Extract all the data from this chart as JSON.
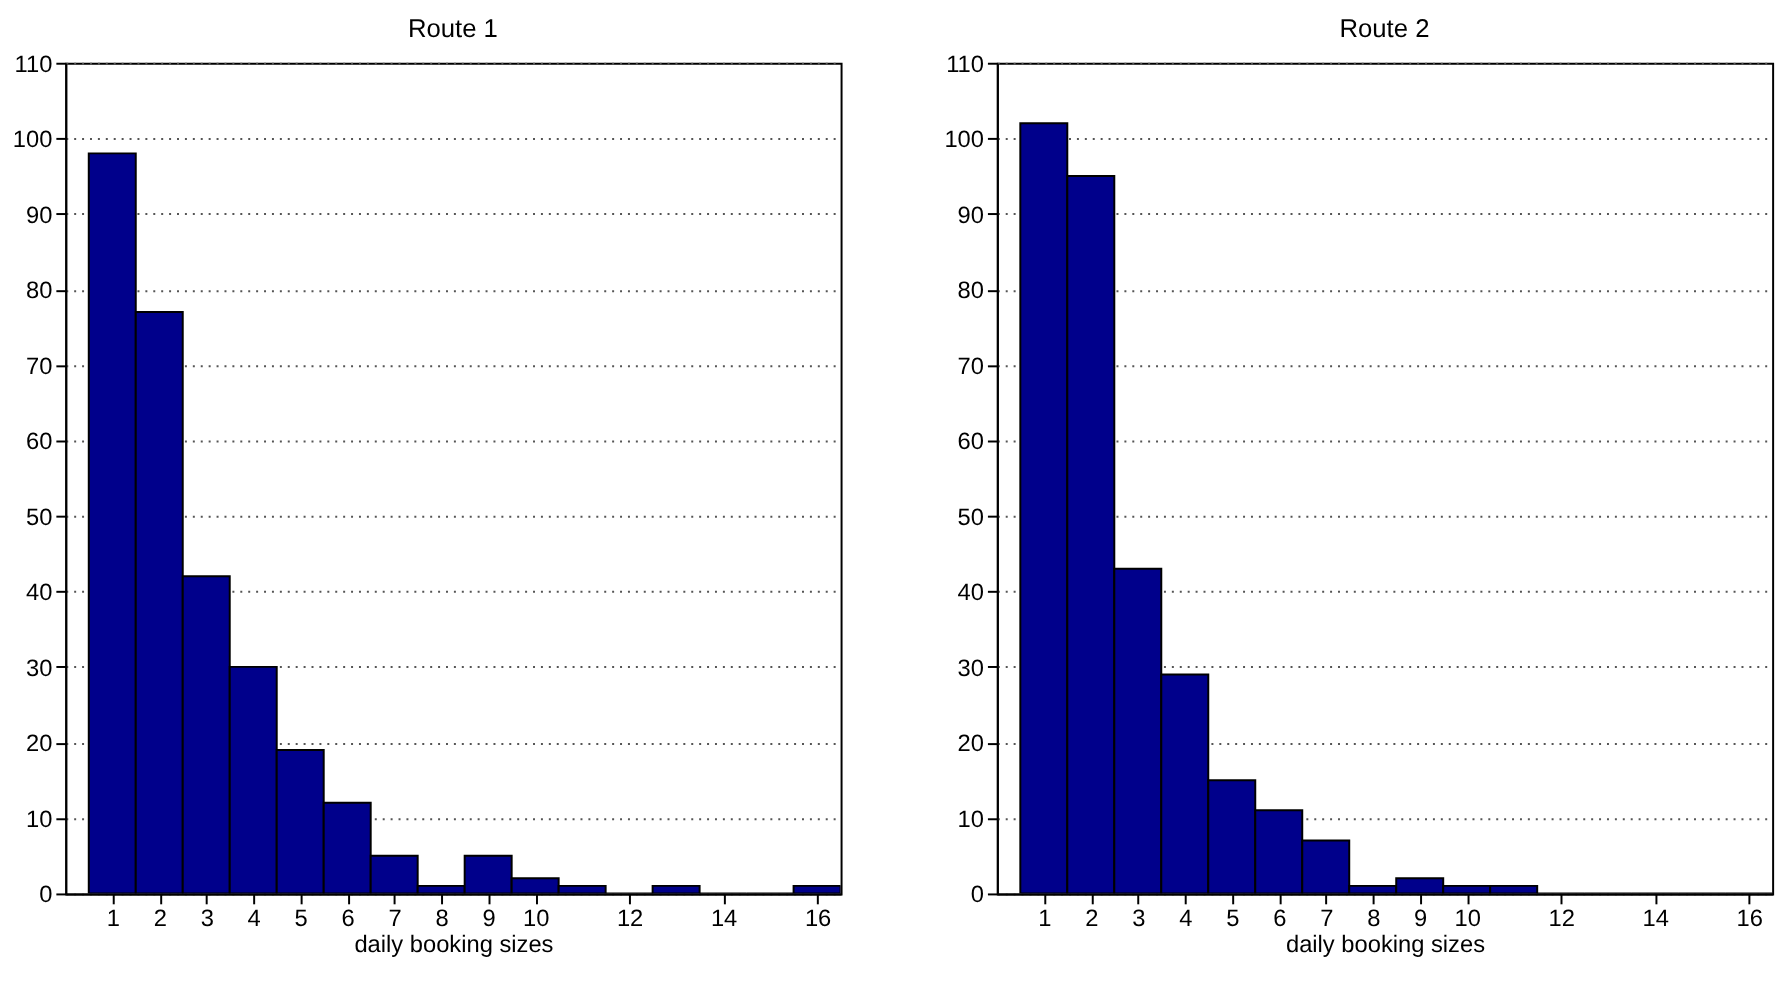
{
  "chart_data": [
    {
      "type": "histogram",
      "title": "Route 1",
      "xlabel": "daily booking sizes",
      "bins": [
        0.5,
        1.5,
        2.5,
        3.5,
        4.5,
        5.5,
        6.5,
        7.5,
        8.5,
        9.5,
        10.5,
        11.5,
        12.5,
        13.5,
        14.5,
        15.5,
        16.5
      ],
      "values": [
        98,
        77,
        42,
        30,
        19,
        12,
        5,
        1,
        5,
        2,
        1,
        0,
        1,
        0,
        0,
        1
      ],
      "color": "#00008b",
      "xlim": [
        0,
        16.5
      ],
      "xticks": [
        1,
        2,
        3,
        4,
        5,
        6,
        7,
        8,
        9,
        10,
        12,
        14,
        16
      ],
      "ylim": [
        0,
        110
      ],
      "yticks": [
        0,
        10,
        20,
        30,
        40,
        50,
        60,
        70,
        80,
        90,
        100,
        110
      ],
      "grid": "y"
    },
    {
      "type": "histogram",
      "title": "Route 2",
      "xlabel": "daily booking sizes",
      "bins": [
        0.5,
        1.5,
        2.5,
        3.5,
        4.5,
        5.5,
        6.5,
        7.5,
        8.5,
        9.5,
        10.5,
        11.5,
        12.5,
        13.5,
        14.5,
        15.5,
        16.5
      ],
      "values": [
        102,
        95,
        43,
        29,
        15,
        11,
        7,
        1,
        2,
        1,
        1,
        0,
        0,
        0,
        0,
        0
      ],
      "color": "#00008b",
      "xlim": [
        0,
        16.5
      ],
      "xticks": [
        1,
        2,
        3,
        4,
        5,
        6,
        7,
        8,
        9,
        10,
        12,
        14,
        16
      ],
      "ylim": [
        0,
        110
      ],
      "yticks": [
        0,
        10,
        20,
        30,
        40,
        50,
        60,
        70,
        80,
        90,
        100,
        110
      ],
      "grid": "y"
    }
  ]
}
